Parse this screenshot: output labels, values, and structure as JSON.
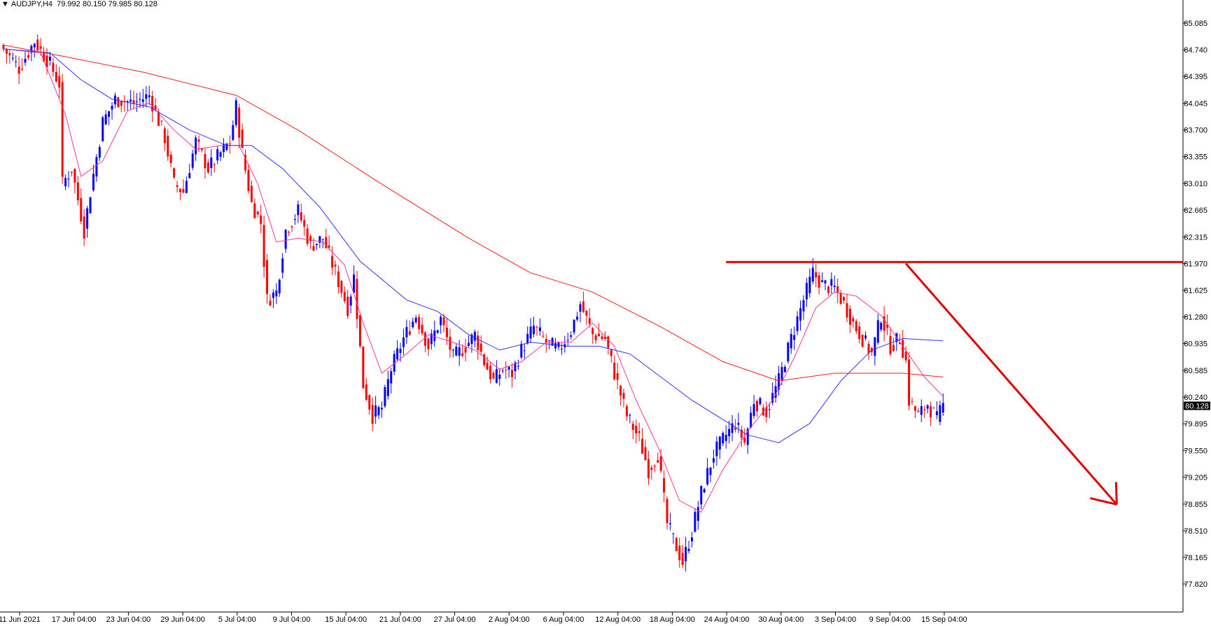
{
  "header": {
    "symbol": "AUDJPY,H4",
    "ohlc": "79.992 80.150 79.985 80.128"
  },
  "chart_data": {
    "type": "candlestick",
    "symbol": "AUDJPY",
    "timeframe": "H4",
    "last_price": "80.128",
    "y_ticks": [
      "85.085",
      "84.740",
      "84.395",
      "84.045",
      "83.700",
      "83.355",
      "83.010",
      "82.665",
      "82.315",
      "81.970",
      "81.625",
      "81.280",
      "80.935",
      "80.585",
      "80.240",
      "79.895",
      "79.550",
      "79.205",
      "78.855",
      "78.510",
      "78.165",
      "77.820"
    ],
    "ylim": [
      77.82,
      85.085
    ],
    "x_ticks": [
      "11 Jun 2021",
      "17 Jun 04:00",
      "23 Jun 04:00",
      "29 Jun 04:00",
      "5 Jul 04:00",
      "9 Jul 04:00",
      "15 Jul 04:00",
      "21 Jul 04:00",
      "27 Jul 04:00",
      "2 Aug 04:00",
      "6 Aug 04:00",
      "12 Aug 04:00",
      "18 Aug 04:00",
      "24 Aug 04:00",
      "30 Aug 04:00",
      "3 Sep 04:00",
      "9 Sep 04:00",
      "15 Sep 04:00"
    ],
    "price_path": [
      {
        "x": 0,
        "y": 84.75
      },
      {
        "x": 5,
        "y": 84.5
      },
      {
        "x": 10,
        "y": 84.85
      },
      {
        "x": 15,
        "y": 84.55
      },
      {
        "x": 18,
        "y": 84.3
      },
      {
        "x": 19,
        "y": 83.0
      },
      {
        "x": 22,
        "y": 83.2
      },
      {
        "x": 26,
        "y": 82.4
      },
      {
        "x": 28,
        "y": 82.9
      },
      {
        "x": 32,
        "y": 83.8
      },
      {
        "x": 36,
        "y": 84.1
      },
      {
        "x": 42,
        "y": 84.05
      },
      {
        "x": 47,
        "y": 84.15
      },
      {
        "x": 52,
        "y": 83.6
      },
      {
        "x": 55,
        "y": 83.0
      },
      {
        "x": 58,
        "y": 82.9
      },
      {
        "x": 62,
        "y": 83.55
      },
      {
        "x": 66,
        "y": 83.2
      },
      {
        "x": 70,
        "y": 83.4
      },
      {
        "x": 73,
        "y": 83.55
      },
      {
        "x": 75,
        "y": 84.0
      },
      {
        "x": 77,
        "y": 83.4
      },
      {
        "x": 80,
        "y": 82.75
      },
      {
        "x": 83,
        "y": 82.5
      },
      {
        "x": 85,
        "y": 81.5
      },
      {
        "x": 88,
        "y": 81.6
      },
      {
        "x": 91,
        "y": 82.4
      },
      {
        "x": 95,
        "y": 82.65
      },
      {
        "x": 99,
        "y": 82.2
      },
      {
        "x": 103,
        "y": 82.3
      },
      {
        "x": 107,
        "y": 81.85
      },
      {
        "x": 111,
        "y": 81.4
      },
      {
        "x": 113,
        "y": 81.8
      },
      {
        "x": 116,
        "y": 80.4
      },
      {
        "x": 119,
        "y": 80.0
      },
      {
        "x": 122,
        "y": 80.1
      },
      {
        "x": 125,
        "y": 80.6
      },
      {
        "x": 129,
        "y": 81.0
      },
      {
        "x": 133,
        "y": 81.3
      },
      {
        "x": 137,
        "y": 80.9
      },
      {
        "x": 141,
        "y": 81.25
      },
      {
        "x": 145,
        "y": 80.75
      },
      {
        "x": 149,
        "y": 80.9
      },
      {
        "x": 152,
        "y": 81.05
      },
      {
        "x": 155,
        "y": 80.7
      },
      {
        "x": 158,
        "y": 80.45
      },
      {
        "x": 161,
        "y": 80.6
      },
      {
        "x": 164,
        "y": 80.55
      },
      {
        "x": 167,
        "y": 80.85
      },
      {
        "x": 171,
        "y": 81.15
      },
      {
        "x": 175,
        "y": 80.95
      },
      {
        "x": 179,
        "y": 80.85
      },
      {
        "x": 183,
        "y": 81.1
      },
      {
        "x": 186,
        "y": 81.45
      },
      {
        "x": 190,
        "y": 81.05
      },
      {
        "x": 194,
        "y": 81.0
      },
      {
        "x": 197,
        "y": 80.55
      },
      {
        "x": 201,
        "y": 80.0
      },
      {
        "x": 205,
        "y": 79.7
      },
      {
        "x": 208,
        "y": 79.3
      },
      {
        "x": 211,
        "y": 79.5
      },
      {
        "x": 214,
        "y": 78.6
      },
      {
        "x": 217,
        "y": 78.3
      },
      {
        "x": 219,
        "y": 78.1
      },
      {
        "x": 222,
        "y": 78.5
      },
      {
        "x": 225,
        "y": 79.0
      },
      {
        "x": 229,
        "y": 79.5
      },
      {
        "x": 233,
        "y": 79.75
      },
      {
        "x": 236,
        "y": 79.9
      },
      {
        "x": 239,
        "y": 79.65
      },
      {
        "x": 242,
        "y": 80.2
      },
      {
        "x": 246,
        "y": 80.05
      },
      {
        "x": 250,
        "y": 80.45
      },
      {
        "x": 254,
        "y": 81.0
      },
      {
        "x": 258,
        "y": 81.5
      },
      {
        "x": 261,
        "y": 81.85
      },
      {
        "x": 264,
        "y": 81.7
      },
      {
        "x": 268,
        "y": 81.65
      },
      {
        "x": 271,
        "y": 81.45
      },
      {
        "x": 274,
        "y": 81.2
      },
      {
        "x": 277,
        "y": 81.0
      },
      {
        "x": 280,
        "y": 80.8
      },
      {
        "x": 283,
        "y": 81.3
      },
      {
        "x": 286,
        "y": 80.9
      },
      {
        "x": 289,
        "y": 81.0
      },
      {
        "x": 291,
        "y": 80.7
      },
      {
        "x": 292,
        "y": 80.2
      },
      {
        "x": 295,
        "y": 80.0
      },
      {
        "x": 298,
        "y": 80.15
      },
      {
        "x": 301,
        "y": 79.95
      },
      {
        "x": 303,
        "y": 80.13
      }
    ],
    "series": [
      {
        "name": "",
        "color": "#ff3399",
        "points": [
          {
            "x": 0,
            "y": 84.75
          },
          {
            "x": 12,
            "y": 84.7
          },
          {
            "x": 20,
            "y": 83.9
          },
          {
            "x": 25,
            "y": 83.1
          },
          {
            "x": 32,
            "y": 83.3
          },
          {
            "x": 40,
            "y": 83.95
          },
          {
            "x": 47,
            "y": 84.05
          },
          {
            "x": 55,
            "y": 83.7
          },
          {
            "x": 62,
            "y": 83.45
          },
          {
            "x": 70,
            "y": 83.5
          },
          {
            "x": 76,
            "y": 83.5
          },
          {
            "x": 82,
            "y": 83.0
          },
          {
            "x": 88,
            "y": 82.25
          },
          {
            "x": 95,
            "y": 82.3
          },
          {
            "x": 103,
            "y": 82.25
          },
          {
            "x": 110,
            "y": 81.95
          },
          {
            "x": 116,
            "y": 81.2
          },
          {
            "x": 122,
            "y": 80.55
          },
          {
            "x": 130,
            "y": 80.8
          },
          {
            "x": 137,
            "y": 81.05
          },
          {
            "x": 145,
            "y": 80.95
          },
          {
            "x": 152,
            "y": 80.85
          },
          {
            "x": 160,
            "y": 80.6
          },
          {
            "x": 167,
            "y": 80.7
          },
          {
            "x": 175,
            "y": 80.95
          },
          {
            "x": 183,
            "y": 80.95
          },
          {
            "x": 190,
            "y": 81.2
          },
          {
            "x": 197,
            "y": 80.9
          },
          {
            "x": 204,
            "y": 80.2
          },
          {
            "x": 211,
            "y": 79.6
          },
          {
            "x": 218,
            "y": 78.9
          },
          {
            "x": 225,
            "y": 78.75
          },
          {
            "x": 232,
            "y": 79.3
          },
          {
            "x": 240,
            "y": 79.8
          },
          {
            "x": 248,
            "y": 80.2
          },
          {
            "x": 255,
            "y": 80.75
          },
          {
            "x": 262,
            "y": 81.4
          },
          {
            "x": 268,
            "y": 81.6
          },
          {
            "x": 275,
            "y": 81.55
          },
          {
            "x": 283,
            "y": 81.3
          },
          {
            "x": 290,
            "y": 80.9
          },
          {
            "x": 297,
            "y": 80.5
          },
          {
            "x": 303,
            "y": 80.25
          }
        ]
      },
      {
        "name": "",
        "color": "#3333ff",
        "points": [
          {
            "x": 0,
            "y": 84.75
          },
          {
            "x": 15,
            "y": 84.7
          },
          {
            "x": 25,
            "y": 84.35
          },
          {
            "x": 35,
            "y": 84.1
          },
          {
            "x": 47,
            "y": 84.0
          },
          {
            "x": 60,
            "y": 83.7
          },
          {
            "x": 72,
            "y": 83.5
          },
          {
            "x": 80,
            "y": 83.5
          },
          {
            "x": 90,
            "y": 83.2
          },
          {
            "x": 102,
            "y": 82.7
          },
          {
            "x": 115,
            "y": 82.0
          },
          {
            "x": 130,
            "y": 81.5
          },
          {
            "x": 140,
            "y": 81.35
          },
          {
            "x": 150,
            "y": 81.05
          },
          {
            "x": 160,
            "y": 80.85
          },
          {
            "x": 170,
            "y": 80.95
          },
          {
            "x": 182,
            "y": 80.9
          },
          {
            "x": 192,
            "y": 80.9
          },
          {
            "x": 202,
            "y": 80.8
          },
          {
            "x": 212,
            "y": 80.5
          },
          {
            "x": 222,
            "y": 80.2
          },
          {
            "x": 232,
            "y": 79.95
          },
          {
            "x": 240,
            "y": 79.75
          },
          {
            "x": 250,
            "y": 79.65
          },
          {
            "x": 260,
            "y": 79.9
          },
          {
            "x": 270,
            "y": 80.45
          },
          {
            "x": 280,
            "y": 80.85
          },
          {
            "x": 290,
            "y": 81.0
          },
          {
            "x": 303,
            "y": 80.97
          }
        ]
      },
      {
        "name": "",
        "color": "#ff1a1a",
        "points": [
          {
            "x": 0,
            "y": 84.8
          },
          {
            "x": 20,
            "y": 84.65
          },
          {
            "x": 45,
            "y": 84.45
          },
          {
            "x": 75,
            "y": 84.15
          },
          {
            "x": 95,
            "y": 83.7
          },
          {
            "x": 120,
            "y": 83.05
          },
          {
            "x": 150,
            "y": 82.3
          },
          {
            "x": 170,
            "y": 81.85
          },
          {
            "x": 190,
            "y": 81.6
          },
          {
            "x": 212,
            "y": 81.15
          },
          {
            "x": 232,
            "y": 80.7
          },
          {
            "x": 250,
            "y": 80.45
          },
          {
            "x": 268,
            "y": 80.55
          },
          {
            "x": 290,
            "y": 80.55
          },
          {
            "x": 303,
            "y": 80.5
          }
        ]
      }
    ],
    "annotations": [
      {
        "type": "hline",
        "y": 81.99,
        "x_start": 233,
        "color": "#e00000"
      },
      {
        "type": "arrow",
        "from": {
          "x": 291,
          "y": 81.97
        },
        "to": {
          "x": 359,
          "y": 78.85
        },
        "color": "#e00000"
      }
    ],
    "colors": {
      "bull": "#0000ff",
      "bear": "#ff0000",
      "price_box": "#000000"
    }
  }
}
